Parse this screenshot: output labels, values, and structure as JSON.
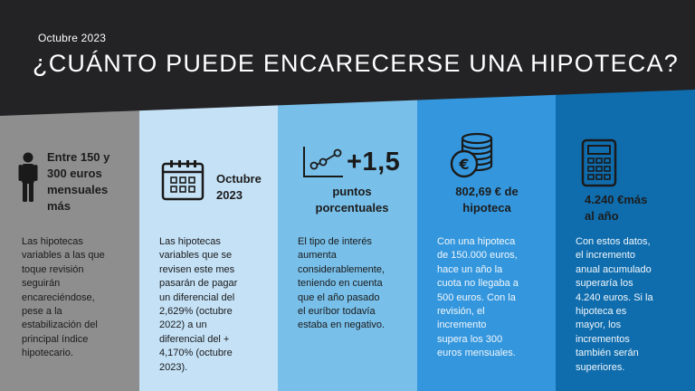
{
  "header": {
    "date": "Octubre 2023",
    "title": "¿CUÁNTO PUEDE ENCARECERSE UNA HIPOTECA?"
  },
  "columns": [
    {
      "icon": "person-icon",
      "head": [
        "Entre 150 y",
        "300 euros",
        "mensuales",
        "más"
      ],
      "body": [
        "Las hipotecas",
        "variables a las que",
        "toque revisión",
        "seguirán",
        "encareciéndose,",
        "pese a la",
        "estabilización del",
        "principal índice",
        "hipotecario."
      ]
    },
    {
      "icon": "calendar-icon",
      "head": [
        "Octubre",
        "2023"
      ],
      "body": [
        "Las hipotecas",
        "variables que se",
        "revisen este mes",
        "pasarán de pagar",
        "un diferencial del",
        "2,629% (octubre",
        "2022) a un",
        "diferencial del +",
        "4,170% (octubre",
        "2023)."
      ]
    },
    {
      "icon": "trend-line-icon",
      "big": "+1,5",
      "head": [
        "puntos",
        "porcentuales"
      ],
      "body": [
        "El tipo de interés",
        "aumenta",
        "considerablemente,",
        "teniendo en cuenta",
        "que el año pasado",
        "el euríbor todavía",
        "estaba en negativo."
      ]
    },
    {
      "icon": "euro-coins-icon",
      "head": [
        "802,69 € de",
        "hipoteca"
      ],
      "body": [
        "Con una hipoteca",
        "de 150.000 euros,",
        "hace un año la",
        "cuota no llegaba a",
        "500 euros. Con la",
        "revisión, el",
        "incremento",
        "supera los 300",
        "euros mensuales."
      ]
    },
    {
      "icon": "calculator-icon",
      "head": [
        "4.240 €más",
        "al año"
      ],
      "body": [
        "Con estos datos,",
        "el incremento",
        "anual acumulado",
        "superaría los",
        "4.240 euros. Si la",
        "hipoteca es",
        "mayor, los",
        "incrementos",
        "también serán",
        "superiores."
      ]
    }
  ],
  "colors": {
    "header": "#232326",
    "col1": "#8e8e8e",
    "col2": "#c4e1f6",
    "col3": "#78bfe9",
    "col4": "#3497de",
    "col5": "#0f6dae"
  }
}
